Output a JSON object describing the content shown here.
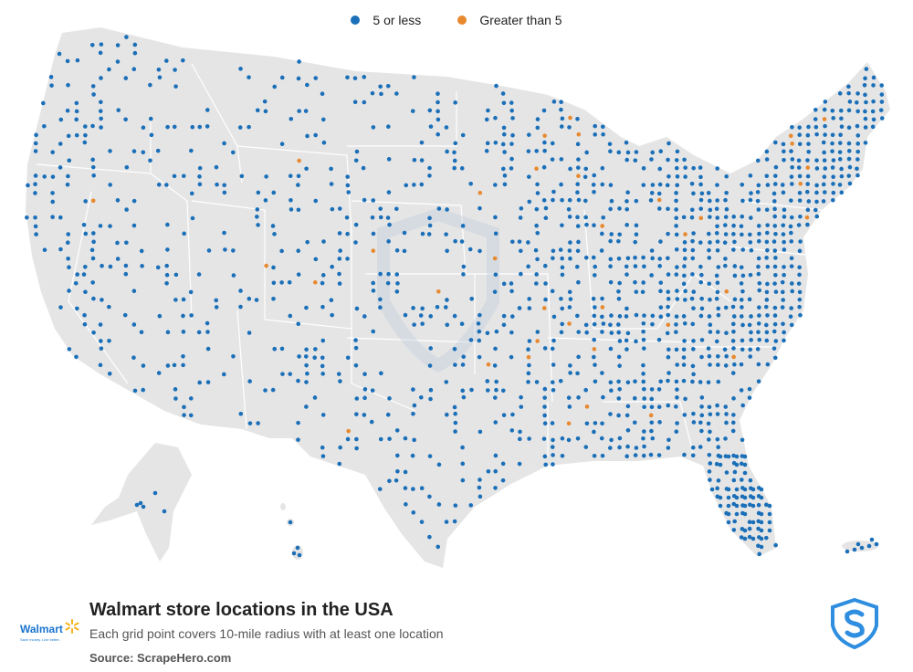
{
  "legend": {
    "items": [
      {
        "label": "5 or less",
        "color": "#1a6fb8"
      },
      {
        "label": "Greater than 5",
        "color": "#e8892f"
      }
    ]
  },
  "colors": {
    "land": "#e5e5e5",
    "state_border": "#ffffff",
    "dot_low": "#1a6fb8",
    "dot_high": "#e8892f",
    "watermark": "#cfd8e3"
  },
  "footer": {
    "title": "Walmart store locations in the USA",
    "subtitle": "Each grid point covers 10-mile radius with at least one location",
    "source": "Source: ScrapeHero.com",
    "brand_logo_text": "Walmart",
    "brand_tagline": "Save money. Live better.",
    "publisher_icon": "scrapehero-shield-icon"
  }
}
